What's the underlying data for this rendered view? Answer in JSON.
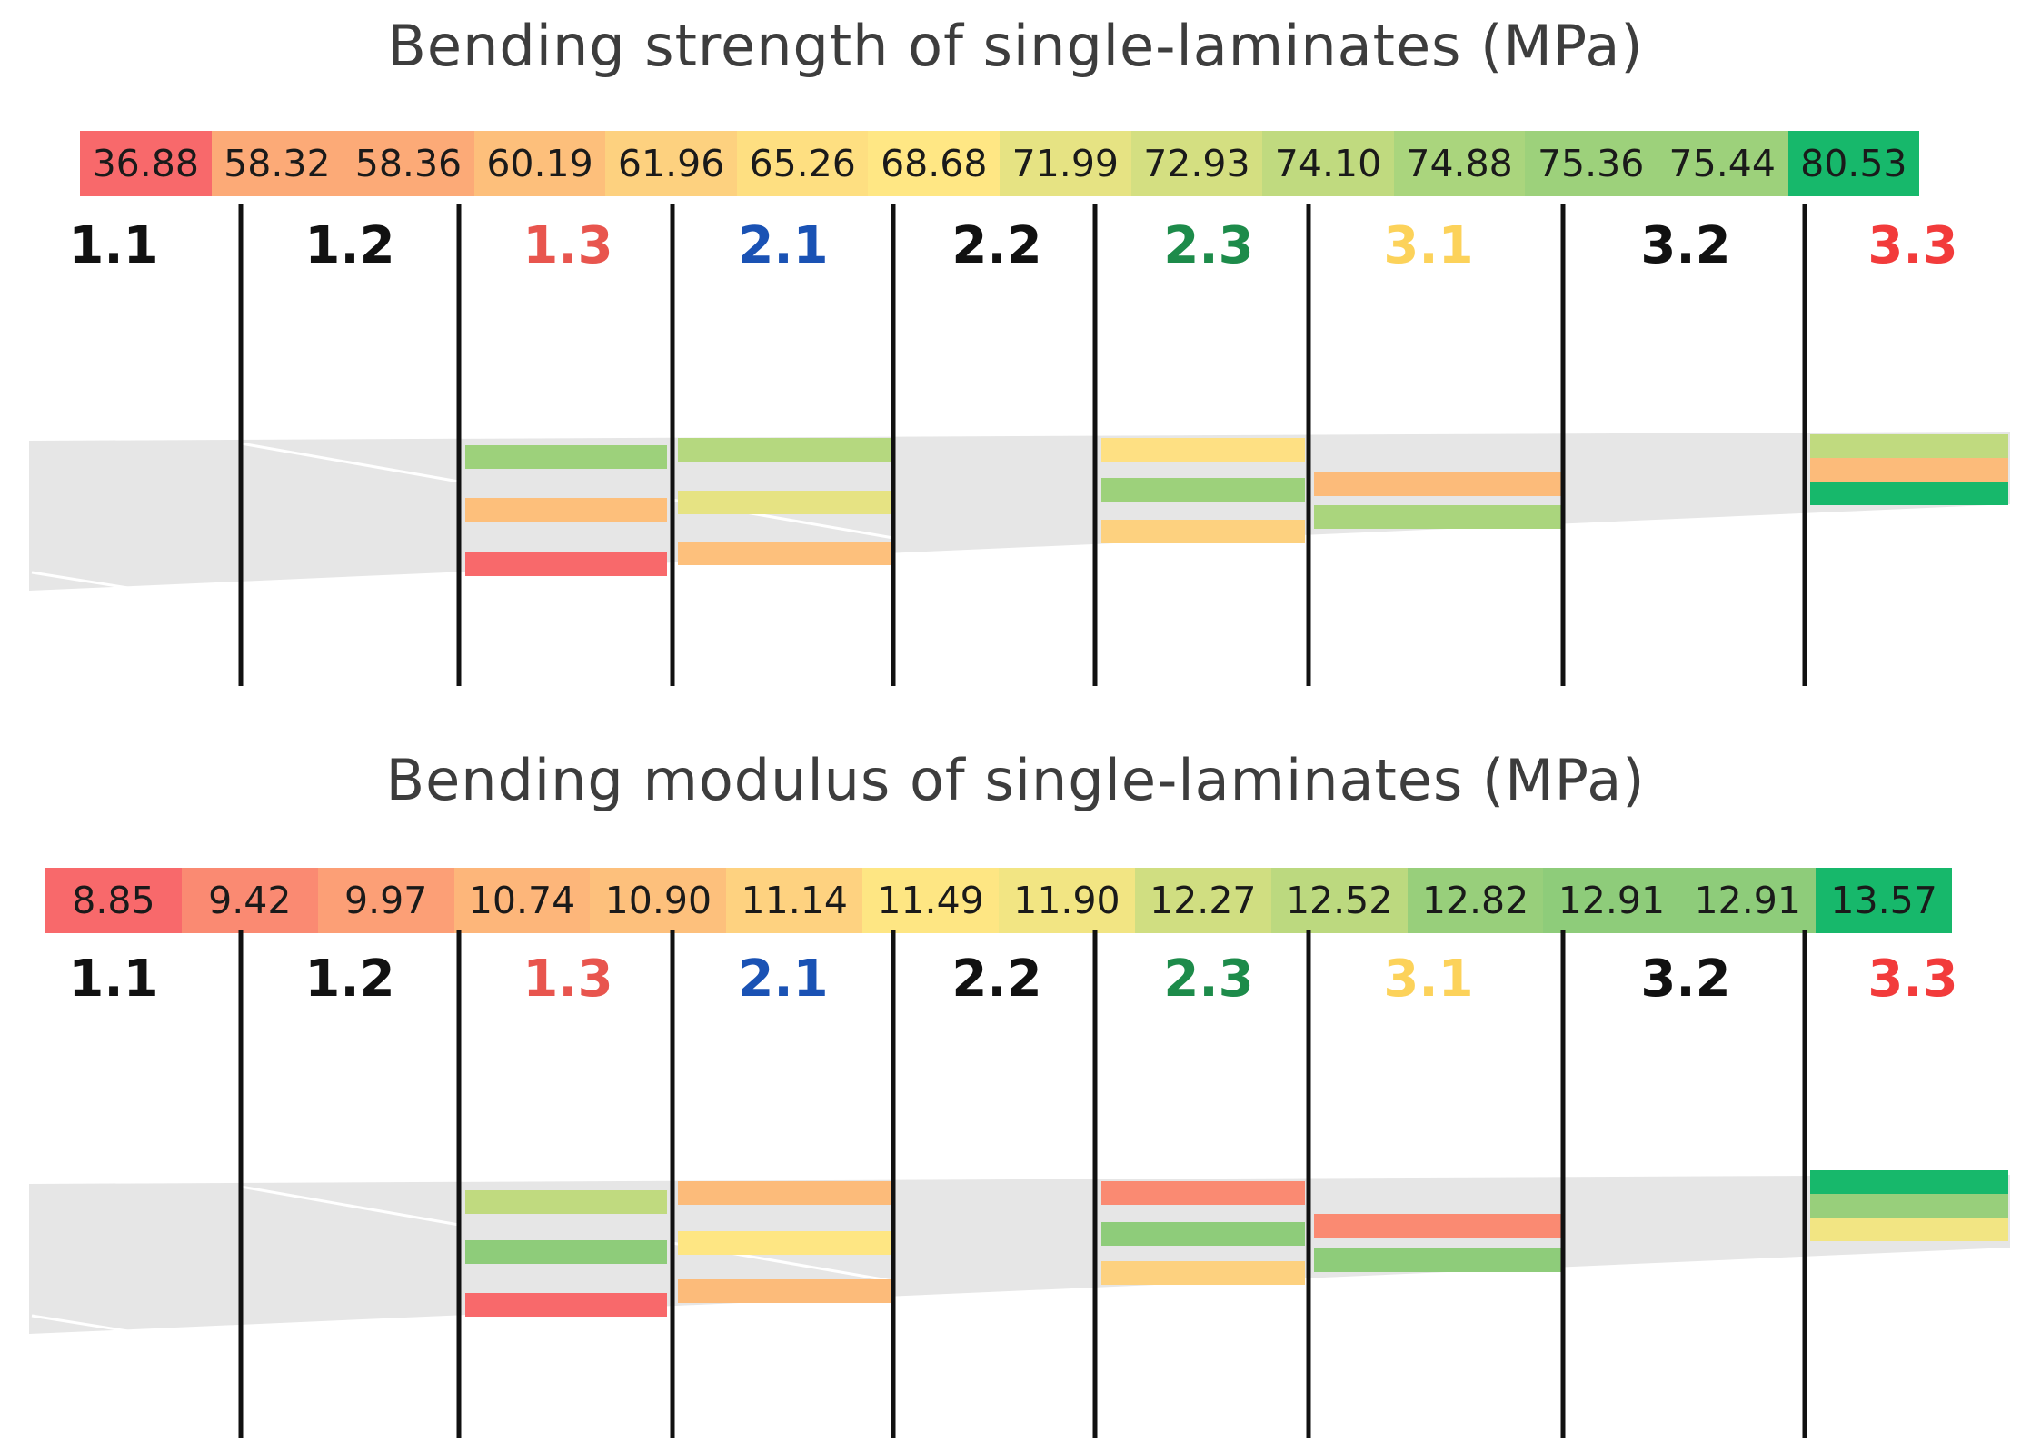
{
  "panels": [
    {
      "title": "Bending strength of single-laminates (MPa)",
      "scale": {
        "values": [
          "36.88",
          "58.32",
          "58.36",
          "60.19",
          "61.96",
          "65.26",
          "68.68",
          "71.99",
          "72.93",
          "74.10",
          "74.88",
          "75.36",
          "75.44",
          "80.53"
        ],
        "colors": [
          "#f8696b",
          "#fcaa77",
          "#fcaa77",
          "#fdbf7b",
          "#fdd17f",
          "#fedf81",
          "#ffe784",
          "#e6e383",
          "#d4df81",
          "#c0da7f",
          "#aad57d",
          "#9dd17b",
          "#9dd17b",
          "#17b86b"
        ]
      },
      "groups": [
        {
          "label": "1.1",
          "color": "#111111"
        },
        {
          "label": "1.2",
          "color": "#111111"
        },
        {
          "label": "1.3",
          "color": "#e8554e"
        },
        {
          "label": "2.1",
          "color": "#1a52b4"
        },
        {
          "label": "2.2",
          "color": "#111111"
        },
        {
          "label": "2.3",
          "color": "#1d8b4a"
        },
        {
          "label": "3.1",
          "color": "#fcd25a"
        },
        {
          "label": "3.2",
          "color": "#111111"
        },
        {
          "label": "3.3",
          "color": "#f23b3b"
        }
      ],
      "layer_colors": {
        "g13": [
          "#9dd17b",
          "#fdbf7b",
          "#f8696b"
        ],
        "g21": [
          "#b5d87f",
          "#e6e383",
          "#fdc07c"
        ],
        "g23": [
          "#fee083",
          "#9dd17b",
          "#fdd17f"
        ],
        "g31": [
          "#fcbb7a",
          "#aad57d"
        ],
        "g33": [
          "#c0da7f",
          "#fcbb7a",
          "#17b86b"
        ]
      }
    },
    {
      "title": "Bending modulus of single-laminates (MPa)",
      "scale": {
        "values": [
          "8.85",
          "9.42",
          "9.97",
          "10.74",
          "10.90",
          "11.14",
          "11.49",
          "11.90",
          "12.27",
          "12.52",
          "12.82",
          "12.91",
          "12.91",
          "13.57"
        ],
        "colors": [
          "#f8696b",
          "#fa8a72",
          "#fc9f76",
          "#fdb67a",
          "#fdc07c",
          "#fed280",
          "#fee683",
          "#f2e583",
          "#d0de81",
          "#bcd97f",
          "#98cf7b",
          "#8ecc7a",
          "#8ecc7a",
          "#17b86b"
        ]
      },
      "groups": [
        {
          "label": "1.1",
          "color": "#111111"
        },
        {
          "label": "1.2",
          "color": "#111111"
        },
        {
          "label": "1.3",
          "color": "#e8554e"
        },
        {
          "label": "2.1",
          "color": "#1a52b4"
        },
        {
          "label": "2.2",
          "color": "#111111"
        },
        {
          "label": "2.3",
          "color": "#1d8b4a"
        },
        {
          "label": "3.1",
          "color": "#fcd25a"
        },
        {
          "label": "3.2",
          "color": "#111111"
        },
        {
          "label": "3.3",
          "color": "#f23b3b"
        }
      ],
      "layer_colors": {
        "g13": [
          "#c0da7f",
          "#8ecc7a",
          "#f8696b"
        ],
        "g21": [
          "#fcbb7a",
          "#fee683",
          "#fcbb7a"
        ],
        "g23": [
          "#fa8a72",
          "#8ecc7a",
          "#fdd17f"
        ],
        "g31": [
          "#fa8a72",
          "#8ecc7a"
        ],
        "g33": [
          "#17b86b",
          "#98cf7b",
          "#f2e583"
        ]
      }
    }
  ]
}
